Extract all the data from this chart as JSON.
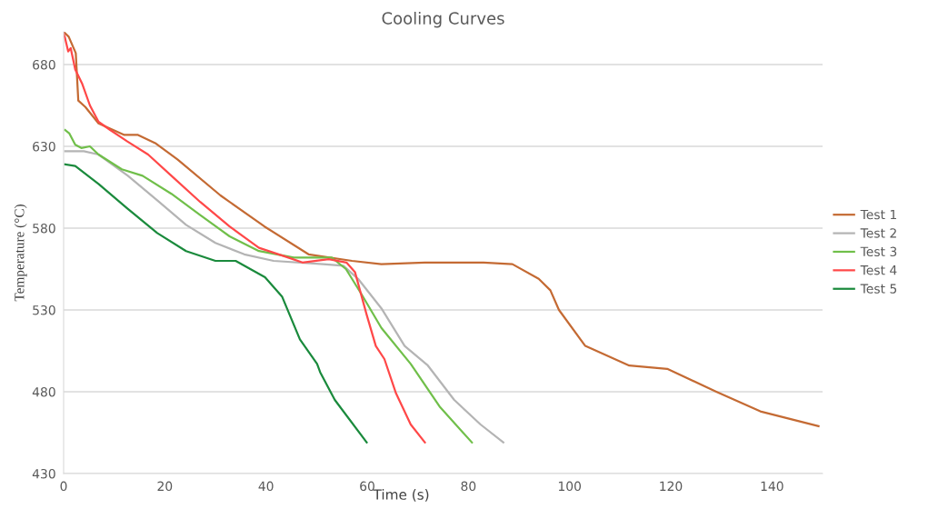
{
  "chart_data": {
    "type": "line",
    "title": "Cooling Curves",
    "xlabel": "Time (s)",
    "ylabel": "Temperature (°C)",
    "xlim": [
      0,
      150
    ],
    "xticks": [
      0,
      20,
      40,
      60,
      80,
      100,
      120,
      140
    ],
    "ylim": [
      430,
      700
    ],
    "yticks": [
      430,
      480,
      530,
      580,
      630,
      680
    ],
    "grid": "y",
    "legend": "right",
    "marker": "none",
    "line_style": "solid",
    "series": [
      {
        "name": "Test 1",
        "color": "#c46a33",
        "x": [
          0,
          1,
          2.4,
          2.9,
          4.3,
          6.9,
          12,
          14.7,
          18.1,
          22.5,
          31,
          39.7,
          48.4,
          57,
          62.8,
          71.4,
          83,
          88.7,
          93.9,
          96.2,
          97.9,
          103.1,
          111.8,
          119.3,
          129,
          137.7,
          149.2
        ],
        "values": [
          700,
          697,
          687,
          658,
          654,
          644,
          637,
          637,
          632,
          622,
          600,
          581,
          564,
          560,
          558,
          559,
          559,
          558,
          549,
          542,
          530,
          508,
          496,
          494,
          480,
          468,
          459
        ]
      },
      {
        "name": "Test 2",
        "color": "#b4b4b4",
        "x": [
          0.3,
          4,
          6.9,
          12.7,
          18.5,
          24.2,
          30,
          35.7,
          41.5,
          51.3,
          55.3,
          58.2,
          62.8,
          67.4,
          72,
          77.2,
          82.4,
          86.9
        ],
        "values": [
          627,
          627,
          625,
          612,
          597,
          582,
          571,
          564,
          560,
          558,
          557,
          549,
          531,
          508,
          496,
          475,
          460,
          449
        ]
      },
      {
        "name": "Test 3",
        "color": "#70bf4a",
        "x": [
          0.3,
          1.1,
          2.3,
          3.5,
          5.2,
          6.9,
          11.5,
          15.6,
          21.3,
          27,
          32.8,
          38.6,
          45.5,
          53,
          55.8,
          58.8,
          62.8,
          68.6,
          74.3,
          80.7
        ],
        "values": [
          640,
          638,
          631,
          629,
          630,
          625,
          616,
          612,
          601,
          588,
          575,
          566,
          562,
          562,
          555,
          540,
          519,
          497,
          471,
          449
        ]
      },
      {
        "name": "Test 4",
        "color": "#ff4848",
        "x": [
          0,
          0.3,
          0.9,
          1.4,
          2.3,
          3.7,
          5.2,
          6.9,
          9.2,
          12.6,
          16.7,
          21.3,
          27,
          32.8,
          38.6,
          44.4,
          47.2,
          52.4,
          55.9,
          57.6,
          59.9,
          61.7,
          63.4,
          65.7,
          68.6,
          71.4
        ],
        "values": [
          699,
          696,
          688,
          690,
          677,
          668,
          655,
          645,
          640,
          633,
          625,
          612,
          596,
          581,
          568,
          562,
          559,
          561,
          559,
          553,
          527,
          508,
          500,
          479,
          460,
          449
        ]
      },
      {
        "name": "Test 5",
        "color": "#1a8a3c",
        "x": [
          0.3,
          2.3,
          6.9,
          12.6,
          18.5,
          24.2,
          30,
          34,
          39.8,
          43.2,
          46.7,
          50.1,
          50.7,
          53.6,
          59.9
        ],
        "values": [
          619,
          618,
          607,
          592,
          577,
          566,
          560,
          560,
          550,
          538,
          512,
          497,
          492,
          475,
          449
        ]
      }
    ]
  }
}
